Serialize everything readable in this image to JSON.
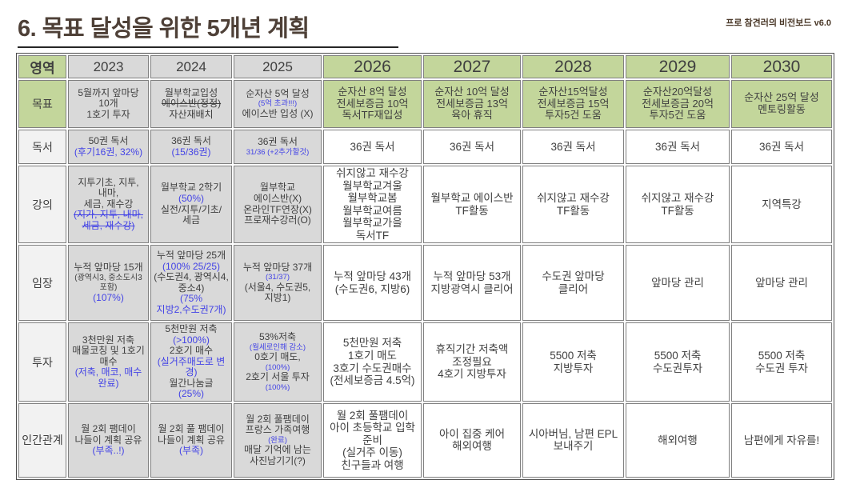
{
  "page": {
    "title": "6. 목표 달성을 위한 5개년 계획",
    "watermark": "프로 참견러의 비전보드 v6.0"
  },
  "colors": {
    "accent_green": "#c3d69b",
    "muted_gray": "#d9d9d9",
    "label_light": "#f2f2f2",
    "annotation_blue": "#4343e6",
    "title_brown": "#4e4037"
  },
  "table": {
    "corner": "영역",
    "years": [
      "2023",
      "2024",
      "2025",
      "2026",
      "2027",
      "2028",
      "2029",
      "2030"
    ],
    "rows": [
      {
        "id": "goal",
        "label": "목표",
        "cells": [
          [
            {
              "t": "5월까지 앞마당",
              "s": "n"
            },
            {
              "t": "10개",
              "s": "n"
            },
            {
              "t": "1호기 투자",
              "s": "n"
            }
          ],
          [
            {
              "t": "월부학교입성",
              "s": "n"
            },
            {
              "t": "에이스반(정정)",
              "s": "st"
            },
            {
              "t": "자산재배치",
              "s": "n"
            }
          ],
          [
            {
              "t": "순자산 5억 달성",
              "s": "n"
            },
            {
              "t": "(5억 초과!!!)",
              "s": "bs"
            },
            {
              "t": "에이스반 입성 (X)",
              "s": "n"
            }
          ],
          [
            {
              "t": "순자산 8억 달성",
              "s": "n"
            },
            {
              "t": "전세보증금 10억",
              "s": "n"
            },
            {
              "t": "독서TF재입성",
              "s": "n"
            }
          ],
          [
            {
              "t": "순자산 10억 달성",
              "s": "n"
            },
            {
              "t": "전세보증금 13억",
              "s": "n"
            },
            {
              "t": "육아 휴직",
              "s": "n"
            }
          ],
          [
            {
              "t": "순자산15억달성",
              "s": "n"
            },
            {
              "t": "전세보증금 15억",
              "s": "n"
            },
            {
              "t": "투자5건 도움",
              "s": "n"
            }
          ],
          [
            {
              "t": "순자산20억달성",
              "s": "n"
            },
            {
              "t": "전세보증금 20억",
              "s": "n"
            },
            {
              "t": "투자5건 도움",
              "s": "n"
            }
          ],
          [
            {
              "t": "순자산 25억 달성",
              "s": "n"
            },
            {
              "t": "멘토링활동",
              "s": "n"
            }
          ]
        ]
      },
      {
        "id": "reading",
        "label": "독서",
        "cells": [
          [
            {
              "t": "50권 독서",
              "s": "n"
            },
            {
              "t": "(후기16권, 32%)",
              "s": "b"
            }
          ],
          [
            {
              "t": "36권 독서",
              "s": "n"
            },
            {
              "t": "(15/36권)",
              "s": "b"
            }
          ],
          [
            {
              "t": "36권 독서",
              "s": "n"
            },
            {
              "t": "31/36 (+2추가할것)",
              "s": "bs"
            }
          ],
          [
            {
              "t": "36권 독서",
              "s": "n"
            }
          ],
          [
            {
              "t": "36권 독서",
              "s": "n"
            }
          ],
          [
            {
              "t": "36권 독서",
              "s": "n"
            }
          ],
          [
            {
              "t": "36권 독서",
              "s": "n"
            }
          ],
          [
            {
              "t": "36권 독서",
              "s": "n"
            }
          ]
        ]
      },
      {
        "id": "lecture",
        "label": "강의",
        "cells": [
          [
            {
              "t": "지투기초, 지투,",
              "s": "n"
            },
            {
              "t": "내마,",
              "s": "n"
            },
            {
              "t": "세금, 재수강",
              "s": "n"
            },
            {
              "t": "(지가, 지투, 내마,",
              "s": "bst"
            },
            {
              "t": "세금, 재수강)",
              "s": "bst"
            }
          ],
          [
            {
              "t": "월부학교 2학기",
              "s": "n"
            },
            {
              "t": "(50%)",
              "s": "b"
            },
            {
              "t": "실전/지투/기초/",
              "s": "n"
            },
            {
              "t": "세금",
              "s": "n"
            }
          ],
          [
            {
              "t": "월부학교",
              "s": "n"
            },
            {
              "t": "에이스반(X)",
              "s": "n"
            },
            {
              "t": "온라인TF연장(X)",
              "s": "n"
            },
            {
              "t": "프로재수강러(O)",
              "s": "n"
            }
          ],
          [
            {
              "t": "쉬지않고 재수강",
              "s": "n"
            },
            {
              "t": "월부학교겨울",
              "s": "n"
            },
            {
              "t": "월부학교봄",
              "s": "n"
            },
            {
              "t": "월부학교여름",
              "s": "n"
            },
            {
              "t": "월부학교가을",
              "s": "n"
            },
            {
              "t": "독서TF",
              "s": "n"
            }
          ],
          [
            {
              "t": "월부학교 에이스반",
              "s": "n"
            },
            {
              "t": "TF활동",
              "s": "n"
            }
          ],
          [
            {
              "t": "쉬지않고 재수강",
              "s": "n"
            },
            {
              "t": "TF활동",
              "s": "n"
            }
          ],
          [
            {
              "t": "쉬지않고 재수강",
              "s": "n"
            },
            {
              "t": "TF활동",
              "s": "n"
            }
          ],
          [
            {
              "t": "지역특강",
              "s": "n"
            }
          ]
        ]
      },
      {
        "id": "field-visit",
        "label": "임장",
        "cells": [
          [
            {
              "t": "누적 앞마당 15개",
              "s": "n"
            },
            {
              "t": "(광역시3, 중소도시3",
              "s": "s"
            },
            {
              "t": "포함)",
              "s": "s"
            },
            {
              "t": "(107%)",
              "s": "b"
            }
          ],
          [
            {
              "t": "누적 앞마당 25개",
              "s": "n"
            },
            {
              "t": "(100% 25/25)",
              "s": "b"
            },
            {
              "t": "(수도권4, 광역시4,",
              "s": "n"
            },
            {
              "t": "중소4)",
              "s": "n"
            },
            {
              "t": "(75%",
              "s": "b"
            },
            {
              "t": "지방2,수도권7개)",
              "s": "b"
            }
          ],
          [
            {
              "t": "누적 앞마당 37개",
              "s": "n"
            },
            {
              "t": "(31/37)",
              "s": "bs"
            },
            {
              "t": "(서울4, 수도권5,",
              "s": "n"
            },
            {
              "t": "지방1)",
              "s": "n"
            }
          ],
          [
            {
              "t": "누적 앞마당 43개",
              "s": "n"
            },
            {
              "t": "(수도권6, 지방6)",
              "s": "n"
            }
          ],
          [
            {
              "t": "누적 앞마당 53개",
              "s": "n"
            },
            {
              "t": "지방광역시 클리어",
              "s": "n"
            }
          ],
          [
            {
              "t": "수도권 앞마당",
              "s": "n"
            },
            {
              "t": "클리어",
              "s": "n"
            }
          ],
          [
            {
              "t": "앞마당 관리",
              "s": "n"
            }
          ],
          [
            {
              "t": "앞마당 관리",
              "s": "n"
            }
          ]
        ]
      },
      {
        "id": "investment",
        "label": "투자",
        "cells": [
          [
            {
              "t": "3천만원 저축",
              "s": "n"
            },
            {
              "t": "매물코칭 및 1호기",
              "s": "n"
            },
            {
              "t": "매수",
              "s": "n"
            },
            {
              "t": "(저축, 매코, 매수",
              "s": "b"
            },
            {
              "t": "완료)",
              "s": "b"
            }
          ],
          [
            {
              "t": "5천만원 저축",
              "s": "n"
            },
            {
              "t": "(>100%)",
              "s": "b"
            },
            {
              "t": "2호기 매수",
              "s": "n"
            },
            {
              "t": "(실거주매도로 변경)",
              "s": "b"
            },
            {
              "t": "월간나눔글",
              "s": "n"
            },
            {
              "t": "(25%)",
              "s": "b"
            }
          ],
          [
            {
              "t": "53%저축",
              "s": "n"
            },
            {
              "t": "(월세로인해 감소)",
              "s": "bs"
            },
            {
              "t": "0호기 매도,",
              "s": "n"
            },
            {
              "t": "(100%)",
              "s": "bs"
            },
            {
              "t": "2호기 서울 투자",
              "s": "n"
            },
            {
              "t": "(100%)",
              "s": "bs"
            }
          ],
          [
            {
              "t": "5천만원 저축",
              "s": "n"
            },
            {
              "t": "1호기 매도",
              "s": "n"
            },
            {
              "t": "3호기 수도권매수",
              "s": "n"
            },
            {
              "t": "(전세보증금 4.5억)",
              "s": "n"
            }
          ],
          [
            {
              "t": "휴직기간 저축액",
              "s": "n"
            },
            {
              "t": "조정필요",
              "s": "n"
            },
            {
              "t": "4호기 지방투자",
              "s": "n"
            }
          ],
          [
            {
              "t": "5500 저축",
              "s": "n"
            },
            {
              "t": "지방투자",
              "s": "n"
            }
          ],
          [
            {
              "t": "5500 저축",
              "s": "n"
            },
            {
              "t": "수도권투자",
              "s": "n"
            }
          ],
          [
            {
              "t": "5500 저축",
              "s": "n"
            },
            {
              "t": "수도권 투자",
              "s": "n"
            }
          ]
        ]
      },
      {
        "id": "relationships",
        "label": "인간관계",
        "cells": [
          [
            {
              "t": "월 2회 팸데이",
              "s": "n"
            },
            {
              "t": "나들이 계획 공유",
              "s": "n"
            },
            {
              "t": "(부족..!)",
              "s": "b"
            }
          ],
          [
            {
              "t": "월 2회 풀 팸데이",
              "s": "n"
            },
            {
              "t": "나들이 계획 공유",
              "s": "n"
            },
            {
              "t": "(부족)",
              "s": "b"
            }
          ],
          [
            {
              "t": "월 2회 풀팸데이",
              "s": "n"
            },
            {
              "t": "프랑스 가족여행",
              "s": "n"
            },
            {
              "t": "(완료)",
              "s": "bs"
            },
            {
              "t": "매달 기억에 남는",
              "s": "n"
            },
            {
              "t": "사진남기기(?)",
              "s": "n"
            }
          ],
          [
            {
              "t": "월 2회 풀팸데이",
              "s": "n"
            },
            {
              "t": "아이 초등학교 입학",
              "s": "n"
            },
            {
              "t": "준비",
              "s": "n"
            },
            {
              "t": "(실거주 이동)",
              "s": "n"
            },
            {
              "t": "친구들과 여행",
              "s": "n"
            }
          ],
          [
            {
              "t": "아이 집중 케어",
              "s": "n"
            },
            {
              "t": "해외여행",
              "s": "n"
            }
          ],
          [
            {
              "t": "시아버님, 남편 EPL",
              "s": "n"
            },
            {
              "t": "보내주기",
              "s": "n"
            }
          ],
          [
            {
              "t": "해외여행",
              "s": "n"
            }
          ],
          [
            {
              "t": "남편에게 자유를!",
              "s": "n"
            }
          ]
        ]
      }
    ]
  }
}
